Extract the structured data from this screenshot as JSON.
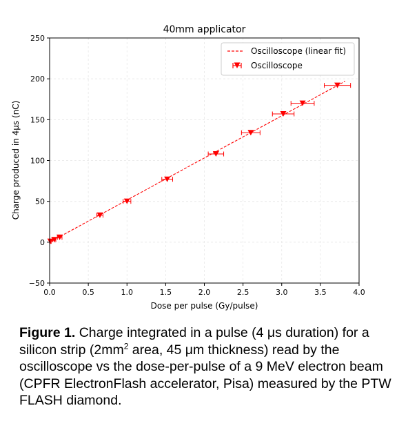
{
  "chart_data": {
    "type": "scatter",
    "title": "40mm applicator",
    "xlabel": "Dose per pulse (Gy/pulse)",
    "ylabel": "Charge produced in 4μs (nC)",
    "xlim": [
      0.0,
      4.0
    ],
    "ylim": [
      -50,
      250
    ],
    "xticks": [
      "0.0",
      "0.5",
      "1.0",
      "1.5",
      "2.0",
      "2.5",
      "3.0",
      "3.5",
      "4.0"
    ],
    "yticks": [
      "−50",
      "0",
      "50",
      "100",
      "150",
      "200",
      "250"
    ],
    "xtick_values": [
      0.0,
      0.5,
      1.0,
      1.5,
      2.0,
      2.5,
      3.0,
      3.5,
      4.0
    ],
    "ytick_values": [
      -50,
      0,
      50,
      100,
      150,
      200,
      250
    ],
    "grid": true,
    "legend_placement": "top-right",
    "color": "#ff0000",
    "series": [
      {
        "name": "Oscilloscope (linear fit)",
        "kind": "line",
        "style": "dashed",
        "x": [
          0.0,
          3.82
        ],
        "y": [
          0,
          197
        ]
      },
      {
        "name": "Oscilloscope",
        "kind": "errorbar",
        "marker": "triangle-down",
        "points": [
          {
            "x": 0.01,
            "y": 1,
            "xerr": 0.01
          },
          {
            "x": 0.06,
            "y": 3,
            "xerr": 0.02
          },
          {
            "x": 0.13,
            "y": 6,
            "xerr": 0.03
          },
          {
            "x": 0.65,
            "y": 33,
            "xerr": 0.04
          },
          {
            "x": 1.0,
            "y": 50,
            "xerr": 0.05
          },
          {
            "x": 1.52,
            "y": 77,
            "xerr": 0.07
          },
          {
            "x": 2.15,
            "y": 108,
            "xerr": 0.1
          },
          {
            "x": 2.6,
            "y": 134,
            "xerr": 0.12
          },
          {
            "x": 3.02,
            "y": 157,
            "xerr": 0.14
          },
          {
            "x": 3.27,
            "y": 170,
            "xerr": 0.15
          },
          {
            "x": 3.72,
            "y": 192,
            "xerr": 0.17
          }
        ]
      }
    ]
  },
  "caption": {
    "label": "Figure 1.",
    "text_1": " Charge integrated in a pulse (4 μs duration) for a silicon strip (2mm",
    "sup": "2",
    "text_2": " area, 45 μm thickness) read by the oscilloscope vs the dose-per-pulse of a 9 MeV electron beam (CPFR ElectronFlash accelerator, Pisa) measured by the PTW FLASH diamond."
  }
}
